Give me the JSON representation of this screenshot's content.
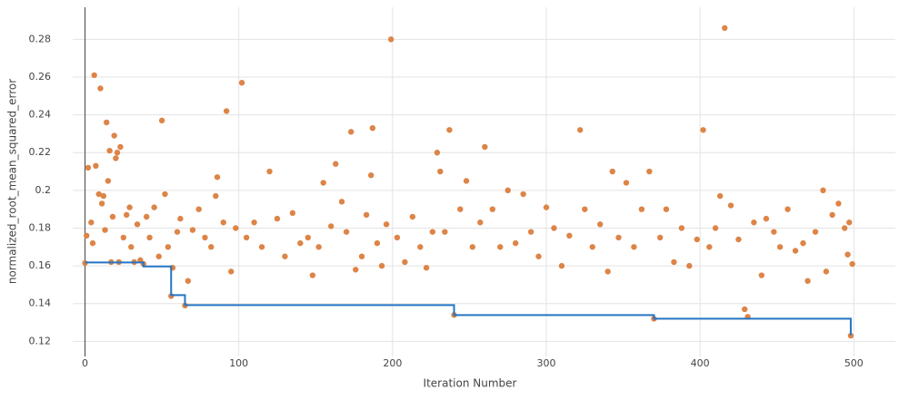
{
  "chart_data": {
    "type": "scatter",
    "x_label": "Iteration Number",
    "y_label": "normalized_root_mean_squared_error",
    "xlim": [
      -8,
      527
    ],
    "ylim": [
      0.112,
      0.297
    ],
    "xticks": [
      0,
      100,
      200,
      300,
      400,
      500
    ],
    "yticks": [
      0.12,
      0.14,
      0.16,
      0.18,
      0.2,
      0.22,
      0.24,
      0.26,
      0.28
    ],
    "grid": true,
    "series": [
      {
        "type": "scatter",
        "color": "#dd8447",
        "x": [
          0,
          1,
          2,
          4,
          5,
          6,
          7,
          9,
          10,
          11,
          12,
          13,
          14,
          15,
          16,
          17,
          18,
          19,
          20,
          21,
          22,
          23,
          25,
          27,
          29,
          30,
          32,
          34,
          36,
          38,
          40,
          42,
          45,
          48,
          50,
          52,
          54,
          56,
          57,
          60,
          62,
          65,
          67,
          70,
          74,
          78,
          82,
          85,
          86,
          90,
          92,
          95,
          98,
          102,
          105,
          110,
          115,
          120,
          125,
          130,
          135,
          140,
          145,
          148,
          152,
          155,
          160,
          163,
          167,
          170,
          173,
          176,
          180,
          183,
          186,
          187,
          190,
          193,
          196,
          199,
          203,
          208,
          213,
          218,
          222,
          226,
          229,
          231,
          234,
          237,
          240,
          244,
          248,
          252,
          257,
          260,
          265,
          270,
          275,
          280,
          285,
          290,
          295,
          300,
          305,
          310,
          315,
          322,
          325,
          330,
          335,
          340,
          343,
          347,
          352,
          357,
          362,
          367,
          370,
          374,
          378,
          383,
          388,
          393,
          398,
          402,
          406,
          410,
          413,
          416,
          420,
          425,
          429,
          431,
          435,
          440,
          443,
          448,
          452,
          457,
          462,
          467,
          470,
          475,
          480,
          482,
          486,
          490,
          494,
          496,
          497,
          498,
          499
        ],
        "y": [
          0.1615,
          0.176,
          0.212,
          0.183,
          0.172,
          0.261,
          0.213,
          0.198,
          0.254,
          0.193,
          0.197,
          0.179,
          0.236,
          0.205,
          0.221,
          0.162,
          0.186,
          0.229,
          0.217,
          0.22,
          0.162,
          0.223,
          0.175,
          0.187,
          0.191,
          0.17,
          0.162,
          0.182,
          0.163,
          0.161,
          0.186,
          0.175,
          0.191,
          0.165,
          0.237,
          0.198,
          0.17,
          0.144,
          0.159,
          0.178,
          0.185,
          0.139,
          0.152,
          0.179,
          0.19,
          0.175,
          0.17,
          0.197,
          0.207,
          0.183,
          0.242,
          0.157,
          0.18,
          0.257,
          0.175,
          0.183,
          0.17,
          0.21,
          0.185,
          0.165,
          0.188,
          0.172,
          0.175,
          0.155,
          0.17,
          0.204,
          0.181,
          0.214,
          0.194,
          0.178,
          0.231,
          0.158,
          0.165,
          0.187,
          0.208,
          0.233,
          0.172,
          0.16,
          0.182,
          0.28,
          0.175,
          0.162,
          0.186,
          0.17,
          0.159,
          0.178,
          0.22,
          0.21,
          0.178,
          0.232,
          0.134,
          0.19,
          0.205,
          0.17,
          0.183,
          0.223,
          0.19,
          0.17,
          0.2,
          0.172,
          0.198,
          0.178,
          0.165,
          0.191,
          0.18,
          0.16,
          0.176,
          0.232,
          0.19,
          0.17,
          0.182,
          0.157,
          0.21,
          0.175,
          0.204,
          0.17,
          0.19,
          0.21,
          0.132,
          0.175,
          0.19,
          0.162,
          0.18,
          0.16,
          0.174,
          0.232,
          0.17,
          0.18,
          0.197,
          0.286,
          0.192,
          0.174,
          0.137,
          0.133,
          0.183,
          0.155,
          0.185,
          0.178,
          0.17,
          0.19,
          0.168,
          0.172,
          0.152,
          0.178,
          0.2,
          0.157,
          0.187,
          0.193,
          0.18,
          0.166,
          0.183,
          0.123,
          0.161
        ]
      },
      {
        "type": "line",
        "shape": "hv",
        "color": "#2575c4",
        "x": [
          0,
          38,
          56,
          65,
          240,
          370,
          498
        ],
        "y": [
          0.1618,
          0.1597,
          0.1445,
          0.1392,
          0.1339,
          0.132,
          0.1233
        ]
      }
    ]
  }
}
